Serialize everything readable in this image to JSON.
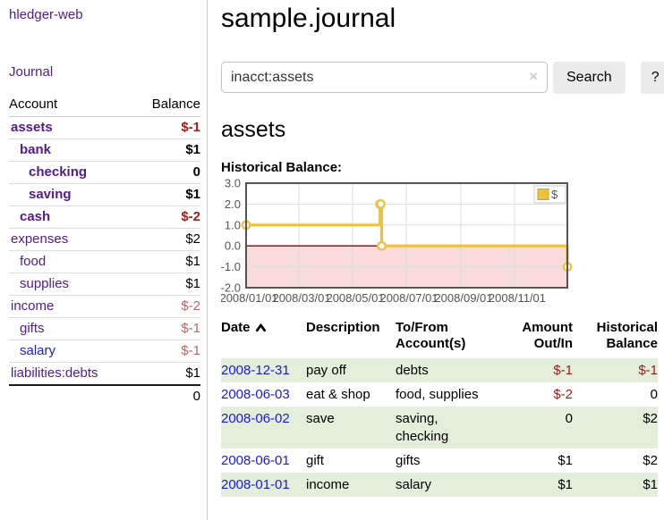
{
  "app_title": "hledger-web",
  "sidebar": {
    "journal_link": "Journal",
    "accounts_table": {
      "headers": {
        "account": "Account",
        "balance": "Balance"
      },
      "rows": [
        {
          "name": "assets",
          "balance": "$-1",
          "indent": 1,
          "bold": true,
          "negative": "strong",
          "link": "visited"
        },
        {
          "name": "bank",
          "balance": "$1",
          "indent": 2,
          "bold": true,
          "negative": "",
          "link": "visited"
        },
        {
          "name": "checking",
          "balance": "0",
          "indent": 3,
          "bold": true,
          "negative": "",
          "link": "visited"
        },
        {
          "name": "saving",
          "balance": "$1",
          "indent": 3,
          "bold": true,
          "negative": "",
          "link": "visited"
        },
        {
          "name": "cash",
          "balance": "$-2",
          "indent": 2,
          "bold": true,
          "negative": "strong",
          "link": "visited"
        },
        {
          "name": "expenses",
          "balance": "$2",
          "indent": 1,
          "bold": false,
          "negative": "",
          "link": "visited"
        },
        {
          "name": "food",
          "balance": "$1",
          "indent": 2,
          "bold": false,
          "negative": "",
          "link": "visited"
        },
        {
          "name": "supplies",
          "balance": "$1",
          "indent": 2,
          "bold": false,
          "negative": "",
          "link": "visited"
        },
        {
          "name": "income",
          "balance": "$-2",
          "indent": 1,
          "bold": false,
          "negative": "soft",
          "link": "visited"
        },
        {
          "name": "gifts",
          "balance": "$-1",
          "indent": 2,
          "bold": false,
          "negative": "soft",
          "link": "visited"
        },
        {
          "name": "salary",
          "balance": "$-1",
          "indent": 2,
          "bold": false,
          "negative": "soft",
          "link": "unvisited"
        },
        {
          "name": "liabilities:debts",
          "balance": "$1",
          "indent": 1,
          "bold": false,
          "negative": "",
          "link": "visited"
        }
      ],
      "total": "0"
    }
  },
  "main": {
    "title": "sample.journal",
    "search": {
      "value": "inacct:assets",
      "clear_icon": "×",
      "search_button": "Search",
      "help_button": "?"
    },
    "account_heading": "assets",
    "chart_title": "Historical Balance:"
  },
  "chart_data": {
    "type": "line",
    "step": true,
    "title": "Historical Balance",
    "series": [
      {
        "name": "$",
        "color": "#edc240",
        "points": [
          [
            "2008-01-01",
            1
          ],
          [
            "2008-06-01",
            2
          ],
          [
            "2008-06-02",
            2
          ],
          [
            "2008-06-03",
            0
          ],
          [
            "2008-12-31",
            -1
          ]
        ]
      }
    ],
    "x_ticks": [
      "2008/01/01",
      "2008/03/01",
      "2008/05/01",
      "2008/07/01",
      "2008/09/01",
      "2008/11/01"
    ],
    "y_ticks": [
      3.0,
      2.0,
      1.0,
      0.0,
      -1.0,
      -2.0
    ],
    "xlim": [
      "2008-01-01",
      "2008-12-31"
    ],
    "ylim": [
      -2,
      3
    ],
    "grid": true,
    "legend": {
      "label": "$",
      "position": "top-right"
    },
    "negative_region_color": "#fadbdb",
    "zero_line_color": "#8b0000"
  },
  "register": {
    "headers": [
      {
        "label": "Date",
        "align": "left",
        "sort_icon": "up"
      },
      {
        "label": "Description",
        "align": "left"
      },
      {
        "label": "To/From Account(s)",
        "align": "left"
      },
      {
        "label": "Amount Out/In",
        "align": "right"
      },
      {
        "label": "Historical Balance",
        "align": "right"
      }
    ],
    "rows": [
      {
        "date": "2008-12-31",
        "description": "pay off",
        "accounts": "debts",
        "amount": "$-1",
        "amount_negative": true,
        "balance": "$-1",
        "balance_negative": true
      },
      {
        "date": "2008-06-03",
        "description": "eat & shop",
        "accounts": "food, supplies",
        "amount": "$-2",
        "amount_negative": true,
        "balance": "0",
        "balance_negative": false
      },
      {
        "date": "2008-06-02",
        "description": "save",
        "accounts": "saving, checking",
        "amount": "0",
        "amount_negative": false,
        "balance": "$2",
        "balance_negative": false
      },
      {
        "date": "2008-06-01",
        "description": "gift",
        "accounts": "gifts",
        "amount": "$1",
        "amount_negative": false,
        "balance": "$2",
        "balance_negative": false
      },
      {
        "date": "2008-01-01",
        "description": "income",
        "accounts": "salary",
        "amount": "$1",
        "amount_negative": false,
        "balance": "$1",
        "balance_negative": false
      }
    ]
  },
  "colors": {
    "visited": "#551a8b",
    "unvisited": "#1a1ad6",
    "negstrong": "#9e1b1b",
    "negsoft": "#b46a6a",
    "stripe": "#e3efdb",
    "gold": "#edc240"
  }
}
